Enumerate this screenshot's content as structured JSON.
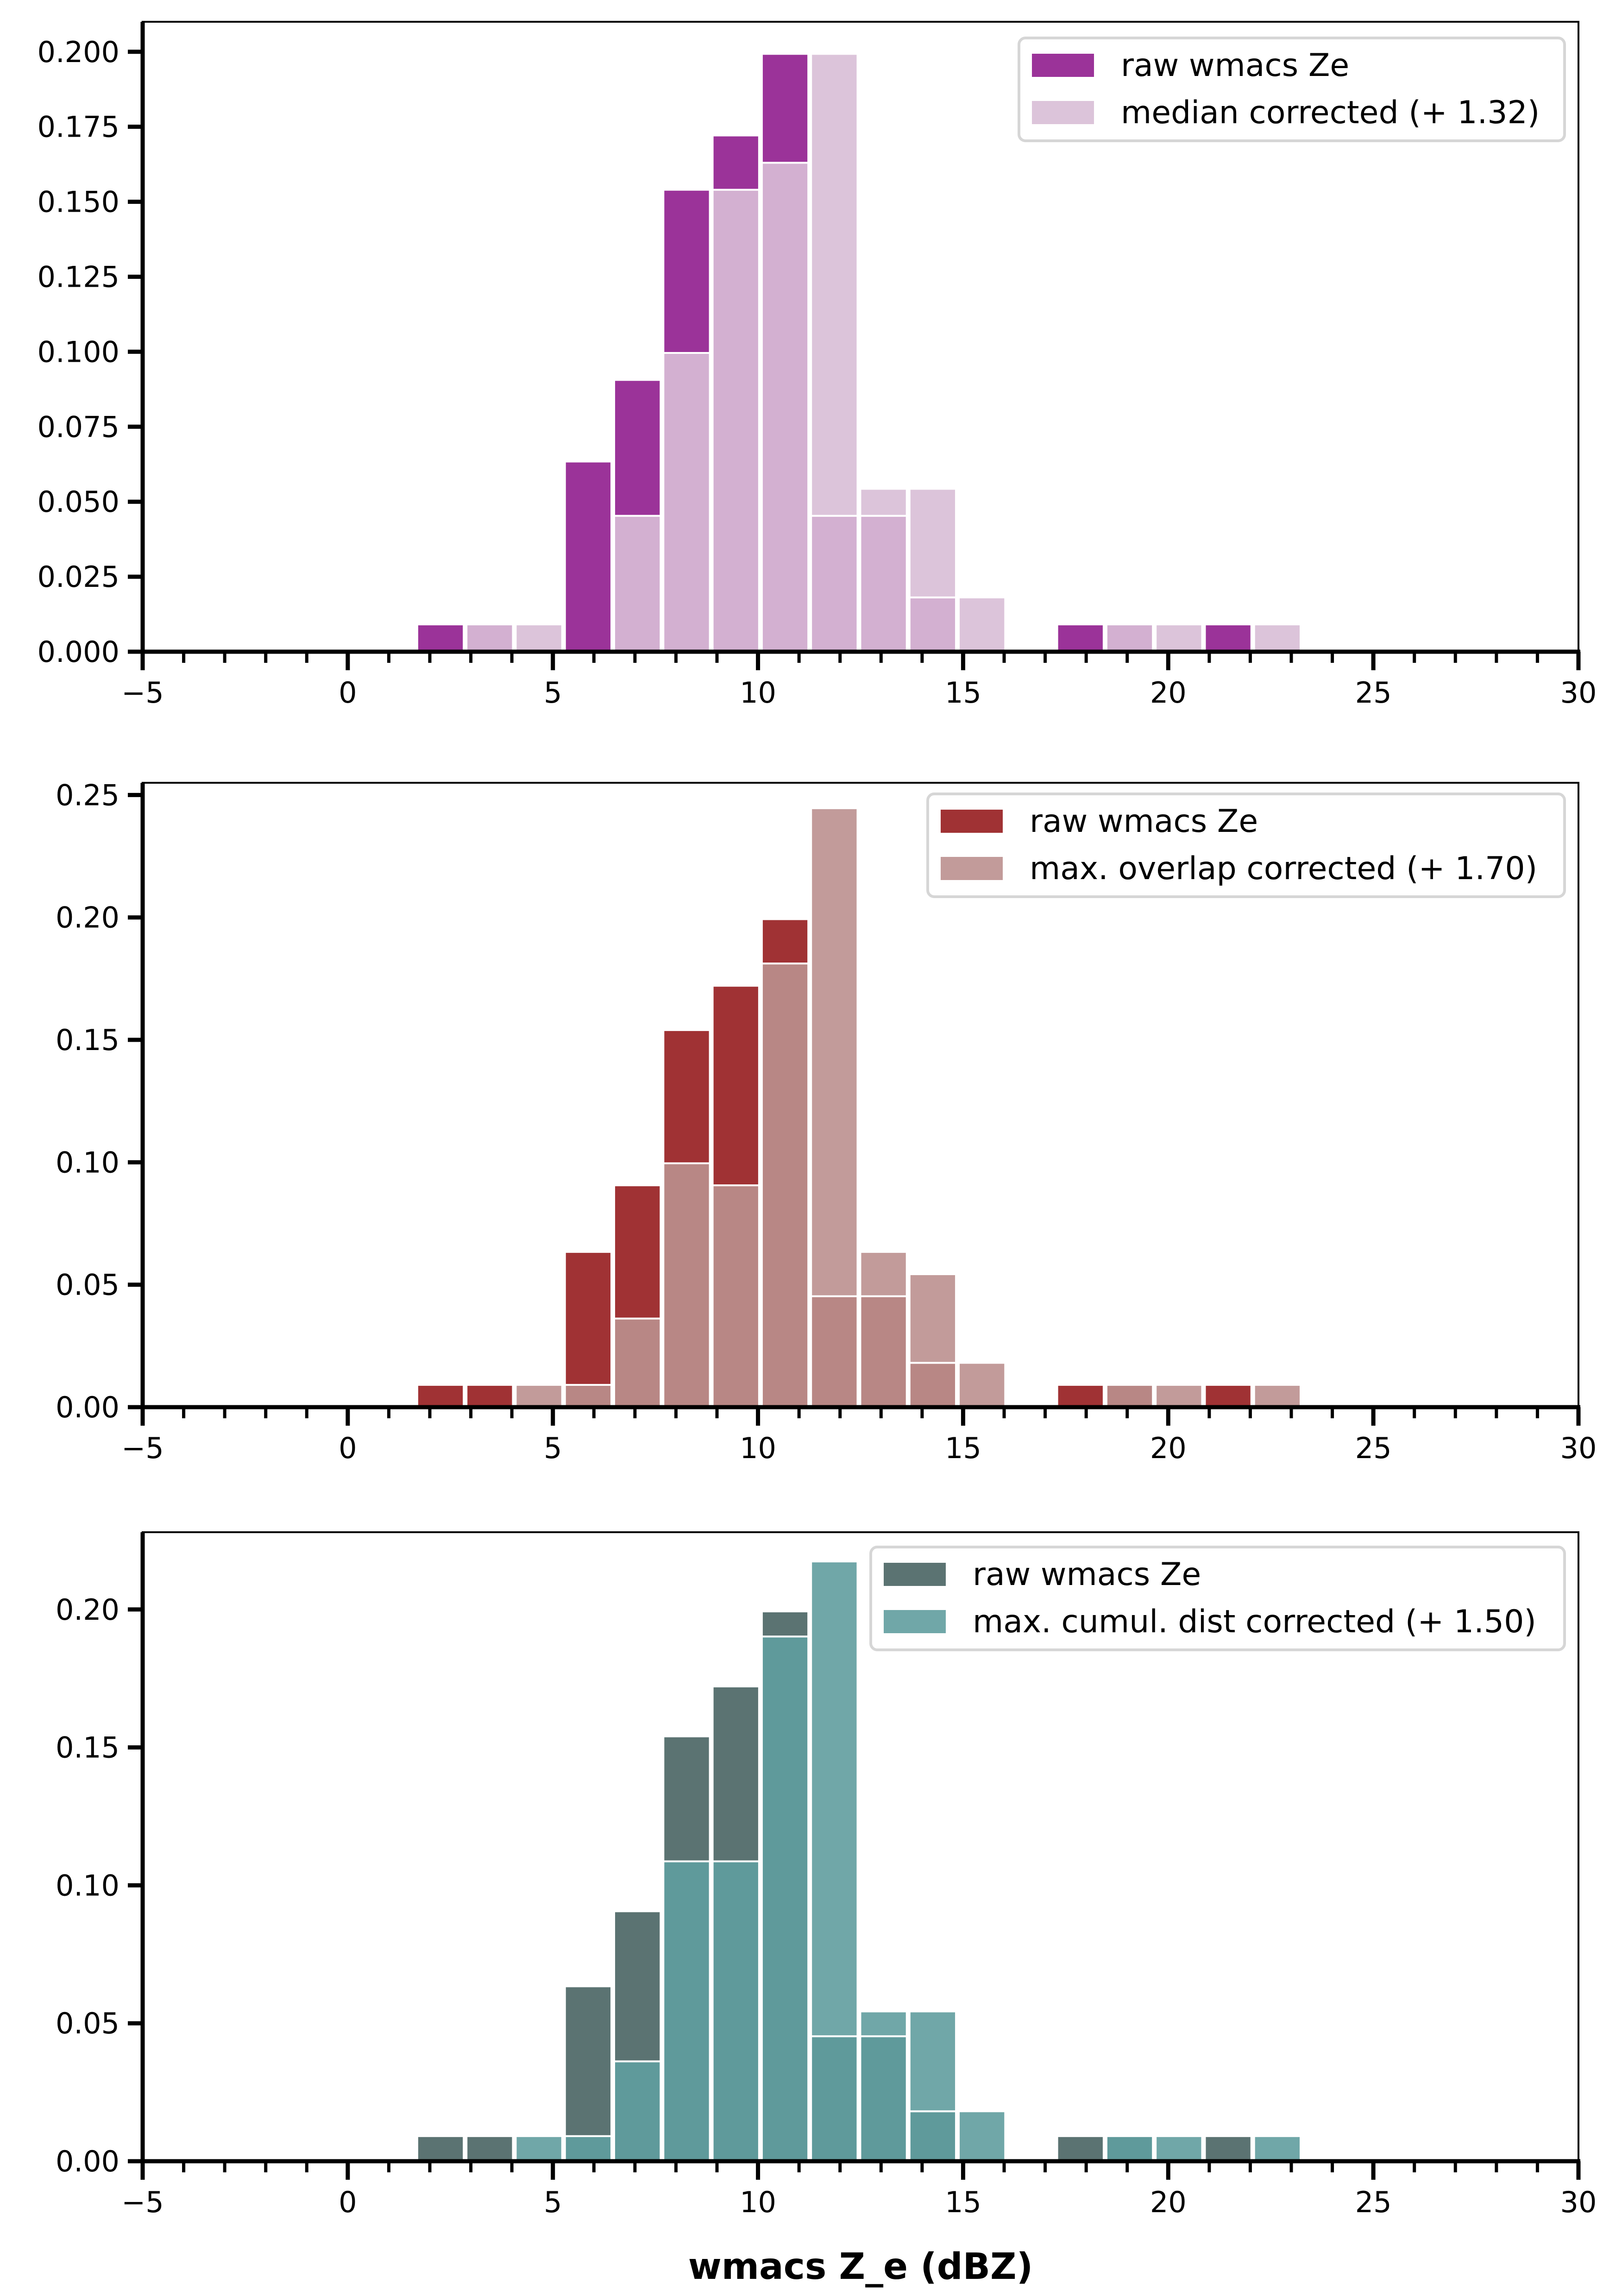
{
  "chart_data": [
    {
      "type": "bar",
      "subtype": "histogram-overlay",
      "title": "",
      "xlabel": "",
      "ylabel": "",
      "xlim": [
        -5,
        30
      ],
      "ylim": [
        0,
        0.21
      ],
      "xticks": [
        "−5",
        "0",
        "5",
        "10",
        "15",
        "20",
        "25",
        "30"
      ],
      "xtick_values": [
        -5,
        0,
        5,
        10,
        15,
        20,
        25,
        30
      ],
      "yticks": [
        "0.000",
        "0.025",
        "0.050",
        "0.075",
        "0.100",
        "0.125",
        "0.150",
        "0.175",
        "0.200"
      ],
      "ytick_values": [
        0,
        0.025,
        0.05,
        0.075,
        0.1,
        0.125,
        0.15,
        0.175,
        0.2
      ],
      "bin_start": 1.66,
      "bin_width": 1.2,
      "legend_position": "top-right",
      "colors": {
        "raw": "#9b3399",
        "overlap": "#d3b0d1",
        "corrected": "#dcc4da"
      },
      "series": [
        {
          "name": "raw wmacs Ze",
          "values": [
            0.0091,
            0.0091,
            0,
            0.0634,
            0.0906,
            0.154,
            0.1721,
            0.1993,
            0.0453,
            0.0453,
            0.0181,
            0,
            0,
            0.0091,
            0.0091,
            0,
            0.0091,
            0
          ]
        },
        {
          "name": "median corrected (+ 1.32)",
          "values": [
            0,
            0.0091,
            0.0091,
            0,
            0.0453,
            0.0996,
            0.154,
            0.163,
            0.1993,
            0.0543,
            0.0543,
            0.0181,
            0,
            0,
            0.0091,
            0.0091,
            0,
            0.0091
          ]
        }
      ]
    },
    {
      "type": "bar",
      "subtype": "histogram-overlay",
      "title": "",
      "xlabel": "",
      "ylabel": "",
      "xlim": [
        -5,
        30
      ],
      "ylim": [
        0,
        0.255
      ],
      "xticks": [
        "−5",
        "0",
        "5",
        "10",
        "15",
        "20",
        "25",
        "30"
      ],
      "xtick_values": [
        -5,
        0,
        5,
        10,
        15,
        20,
        25,
        30
      ],
      "yticks": [
        "0.00",
        "0.05",
        "0.10",
        "0.15",
        "0.20",
        "0.25"
      ],
      "ytick_values": [
        0,
        0.05,
        0.1,
        0.15,
        0.2,
        0.25
      ],
      "bin_start": 1.66,
      "bin_width": 1.2,
      "legend_position": "top-right",
      "colors": {
        "raw": "#a03234",
        "overlap": "#b88785",
        "corrected": "#c29b9a"
      },
      "series": [
        {
          "name": "raw wmacs Ze",
          "values": [
            0.0091,
            0.0091,
            0,
            0.0634,
            0.0906,
            0.154,
            0.1721,
            0.1993,
            0.0453,
            0.0453,
            0.0181,
            0,
            0,
            0.0091,
            0.0091,
            0,
            0.0091,
            0
          ]
        },
        {
          "name": "max. overlap corrected (+ 1.70)",
          "values": [
            0,
            0,
            0.0091,
            0.0091,
            0.0362,
            0.0996,
            0.0906,
            0.1812,
            0.2446,
            0.0634,
            0.0543,
            0.0181,
            0,
            0,
            0.0091,
            0.0091,
            0,
            0.0091
          ]
        }
      ]
    },
    {
      "type": "bar",
      "subtype": "histogram-overlay",
      "title": "",
      "xlabel": "wmacs Z_e (dBZ)",
      "ylabel": "",
      "xlim": [
        -5,
        30
      ],
      "ylim": [
        0,
        0.228
      ],
      "xticks": [
        "−5",
        "0",
        "5",
        "10",
        "15",
        "20",
        "25",
        "30"
      ],
      "xtick_values": [
        -5,
        0,
        5,
        10,
        15,
        20,
        25,
        30
      ],
      "yticks": [
        "0.00",
        "0.05",
        "0.10",
        "0.15",
        "0.20"
      ],
      "ytick_values": [
        0,
        0.05,
        0.1,
        0.15,
        0.2
      ],
      "bin_start": 1.66,
      "bin_width": 1.2,
      "legend_position": "top-right",
      "colors": {
        "raw": "#5b7372",
        "overlap": "#5f9a9b",
        "corrected": "#70a7a8"
      },
      "series": [
        {
          "name": "raw wmacs Ze",
          "values": [
            0.0091,
            0.0091,
            0,
            0.0634,
            0.0906,
            0.154,
            0.1721,
            0.1993,
            0.0453,
            0.0453,
            0.0181,
            0,
            0,
            0.0091,
            0.0091,
            0,
            0.0091,
            0
          ]
        },
        {
          "name": "max. cumul. dist corrected (+ 1.50)",
          "values": [
            0,
            0,
            0.0091,
            0.0091,
            0.0362,
            0.1087,
            0.1087,
            0.1902,
            0.2174,
            0.0543,
            0.0543,
            0.0181,
            0,
            0,
            0.0091,
            0.0091,
            0,
            0.0091
          ]
        }
      ]
    }
  ]
}
